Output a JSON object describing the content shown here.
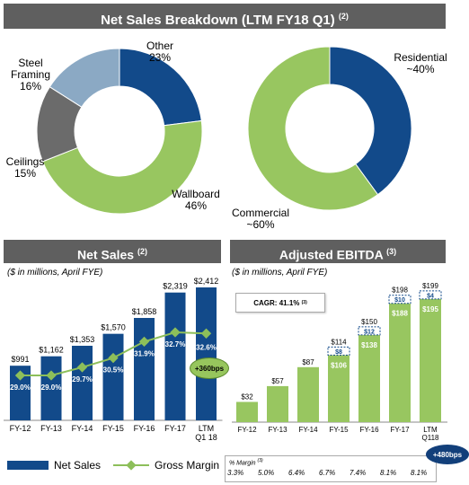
{
  "sections": {
    "top_title": "Net Sales Breakdown (LTM FY18 Q1)",
    "top_note": "(2)",
    "net_sales_title": "Net Sales",
    "net_sales_note": "(2)",
    "net_sales_subtitle": "($ in millions, April FYE)",
    "ebitda_title": "Adjusted EBITDA",
    "ebitda_note": "(3)",
    "ebitda_subtitle": "($ in millions, April FYE)"
  },
  "colors": {
    "banner": "#5f5f5f",
    "navy": "#124a8a",
    "steel_blue": "#8ba9c4",
    "gray": "#6b6b6b",
    "green": "#98c660",
    "light_green": "#a9d26e",
    "badge_green": "#97c65d",
    "badge_navy": "#123f7a"
  },
  "chart_data": [
    {
      "type": "pie",
      "title": "",
      "slices": [
        {
          "label": "Other",
          "value_label": "23%",
          "value": 23,
          "color": "#124a8a"
        },
        {
          "label": "Wallboard",
          "value_label": "46%",
          "value": 46,
          "color": "#98c660"
        },
        {
          "label": "Ceilings",
          "value_label": "15%",
          "value": 15,
          "color": "#6b6b6b"
        },
        {
          "label": "Steel Framing",
          "value_label": "16%",
          "value": 16,
          "color": "#8ba9c4"
        }
      ]
    },
    {
      "type": "pie",
      "title": "",
      "slices": [
        {
          "label": "Residential",
          "value_label": "~40%",
          "value": 40,
          "color": "#124a8a"
        },
        {
          "label": "Commercial",
          "value_label": "~60%",
          "value": 60,
          "color": "#98c660"
        }
      ]
    },
    {
      "type": "bar",
      "title": "Net Sales",
      "categories": [
        "FY-12",
        "FY-13",
        "FY-14",
        "FY-15",
        "FY-16",
        "FY-17",
        "LTM Q1 18"
      ],
      "values": [
        991,
        1162,
        1353,
        1570,
        1858,
        2319,
        2412
      ],
      "value_labels": [
        "$991",
        "$1,162",
        "$1,353",
        "$1,570",
        "$1,858",
        "$2,319",
        "$2,412"
      ],
      "ylim": [
        0,
        2600
      ],
      "line_series": {
        "name": "Gross Margin",
        "values": [
          29.0,
          29.0,
          29.7,
          30.5,
          31.9,
          32.7,
          32.6
        ],
        "labels": [
          "29.0%",
          "29.0%",
          "29.7%",
          "30.5%",
          "31.9%",
          "32.7%",
          "32.6%"
        ],
        "ylim": [
          25,
          40
        ]
      },
      "legend": [
        "Net Sales",
        "Gross Margin"
      ],
      "legend_position": "bottom",
      "annotation": "+360bps"
    },
    {
      "type": "bar",
      "title": "Adjusted EBITDA",
      "categories": [
        "FY-12",
        "FY-13",
        "FY-14",
        "FY-15",
        "FY-16",
        "FY-17",
        "LTM Q118"
      ],
      "totals": [
        32,
        57,
        87,
        114,
        150,
        198,
        199
      ],
      "total_labels": [
        "$32",
        "$57",
        "$87",
        "$114",
        "$150",
        "$198",
        "$199"
      ],
      "base_values": [
        32,
        57,
        87,
        106,
        138,
        188,
        195
      ],
      "base_labels": [
        "",
        "",
        "",
        "$106",
        "$138",
        "$188",
        "$195"
      ],
      "increment_values": [
        0,
        0,
        0,
        8,
        12,
        10,
        4
      ],
      "increment_labels": [
        "",
        "",
        "",
        "$8",
        "$12",
        "$10",
        "$4"
      ],
      "ylim": [
        0,
        230
      ],
      "cagr_label": "CAGR:",
      "cagr_value": "41.1%",
      "cagr_note": "(3)",
      "margin_title": "% Margin",
      "margin_note": "(3)",
      "margins": [
        "3.3%",
        "5.0%",
        "6.4%",
        "6.7%",
        "7.4%",
        "8.1%",
        "8.1%"
      ],
      "annotation": "+480bps"
    }
  ]
}
